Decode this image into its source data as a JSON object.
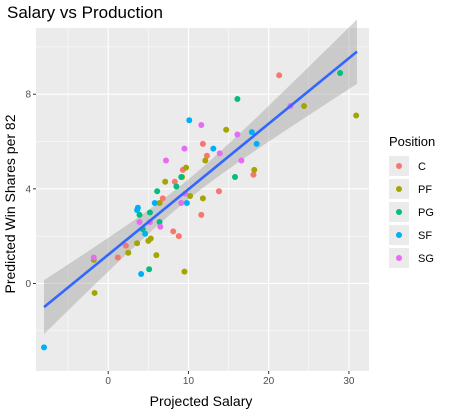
{
  "chart_data": {
    "type": "scatter",
    "title": "Salary vs Production",
    "xlabel": "Projected Salary",
    "ylabel": "Predicted Win Shares per 82",
    "xlim": [
      -9,
      32.5
    ],
    "ylim": [
      -3.7,
      10.8
    ],
    "x_ticks": [
      0,
      10,
      20,
      30
    ],
    "y_ticks": [
      0,
      4,
      8
    ],
    "grid": true,
    "legend_position": "right",
    "legend": {
      "title": "Position",
      "entries": [
        "C",
        "PF",
        "PG",
        "SF",
        "SG"
      ]
    },
    "colors": {
      "C": "#F8766D",
      "PF": "#A3A500",
      "PG": "#00BF7D",
      "SF": "#00B0F6",
      "SG": "#E76BF3",
      "trend": "#3366FF",
      "band": "#999999",
      "panel": "#EBEBEB",
      "grid": "#FFFFFF"
    },
    "trend_line": {
      "x": [
        -8,
        31
      ],
      "y": [
        -1.0,
        9.8
      ],
      "method": "lm",
      "se": true
    },
    "series": [
      {
        "name": "C",
        "points": [
          [
            21.3,
            8.8
          ],
          [
            13.8,
            3.9
          ],
          [
            18.1,
            4.6
          ],
          [
            11.8,
            5.9
          ],
          [
            12.3,
            5.4
          ],
          [
            9.3,
            4.8
          ],
          [
            8.3,
            4.3
          ],
          [
            6.8,
            3.6
          ],
          [
            11.6,
            2.9
          ],
          [
            8.1,
            2.2
          ],
          [
            8.8,
            2.0
          ],
          [
            1.2,
            1.1
          ],
          [
            2.2,
            1.6
          ]
        ]
      },
      {
        "name": "PF",
        "points": [
          [
            30.9,
            7.1
          ],
          [
            24.4,
            7.5
          ],
          [
            18.2,
            4.8
          ],
          [
            14.7,
            6.5
          ],
          [
            12.1,
            5.2
          ],
          [
            11.8,
            3.6
          ],
          [
            10.2,
            3.7
          ],
          [
            9.7,
            4.9
          ],
          [
            9.2,
            4.5
          ],
          [
            7.1,
            4.3
          ],
          [
            6.4,
            3.4
          ],
          [
            5.0,
            1.8
          ],
          [
            5.3,
            1.9
          ],
          [
            6.0,
            1.2
          ],
          [
            9.5,
            0.5
          ],
          [
            3.6,
            1.7
          ],
          [
            2.5,
            1.3
          ],
          [
            -1.7,
            -0.4
          ],
          [
            -1.8,
            1.0
          ]
        ]
      },
      {
        "name": "PG",
        "points": [
          [
            28.9,
            8.9
          ],
          [
            16.1,
            7.8
          ],
          [
            15.8,
            4.5
          ],
          [
            9.1,
            4.5
          ],
          [
            8.5,
            4.1
          ],
          [
            6.1,
            3.9
          ],
          [
            5.2,
            3.0
          ],
          [
            3.9,
            2.9
          ],
          [
            6.4,
            2.6
          ],
          [
            4.3,
            2.3
          ],
          [
            5.1,
            0.6
          ]
        ]
      },
      {
        "name": "SF",
        "points": [
          [
            17.9,
            6.4
          ],
          [
            18.5,
            5.9
          ],
          [
            13.1,
            5.7
          ],
          [
            10.1,
            6.9
          ],
          [
            5.8,
            3.4
          ],
          [
            3.7,
            3.2
          ],
          [
            3.6,
            3.1
          ],
          [
            4.6,
            2.1
          ],
          [
            4.1,
            0.4
          ],
          [
            -8.0,
            -2.7
          ],
          [
            9.8,
            3.4
          ]
        ]
      },
      {
        "name": "SG",
        "points": [
          [
            22.7,
            7.5
          ],
          [
            16.1,
            6.3
          ],
          [
            11.6,
            6.7
          ],
          [
            9.5,
            5.7
          ],
          [
            7.2,
            5.2
          ],
          [
            13.9,
            5.5
          ],
          [
            16.6,
            5.2
          ],
          [
            9.6,
            3.8
          ],
          [
            9.1,
            3.4
          ],
          [
            6.5,
            2.4
          ],
          [
            5.2,
            2.6
          ],
          [
            3.9,
            2.6
          ],
          [
            -1.8,
            1.1
          ]
        ]
      }
    ]
  }
}
